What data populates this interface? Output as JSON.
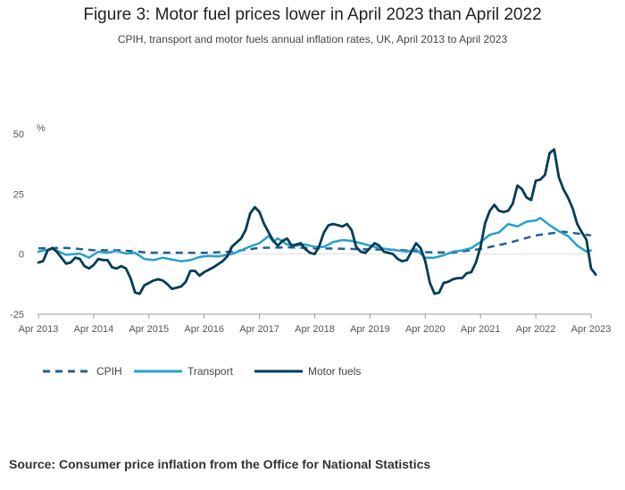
{
  "title": "Figure 3: Motor fuel prices lower in April 2023 than April 2022",
  "subtitle": "CPIH, transport and motor fuels annual inflation rates, UK, April 2013 to April 2023",
  "source": "Source: Consumer price inflation from the Office for National Statistics",
  "colors": {
    "cpih": "#206095",
    "transport": "#27a0cc",
    "motor_fuels": "#003c57",
    "axis": "#999999",
    "grid": "#dddddd"
  },
  "chart_data": {
    "type": "line",
    "title": "Figure 3: Motor fuel prices lower in April 2023 than April 2022",
    "ylabel": "%",
    "xlabel": "",
    "ylim": [
      -25,
      50
    ],
    "yticks": [
      -25,
      0,
      25,
      50
    ],
    "xlim": [
      0,
      120
    ],
    "xtick_positions": [
      0,
      12,
      24,
      36,
      48,
      60,
      72,
      84,
      96,
      108,
      120
    ],
    "xtick_labels": [
      "Apr 2013",
      "Apr 2014",
      "Apr 2015",
      "Apr 2016",
      "Apr 2017",
      "Apr 2018",
      "Apr 2019",
      "Apr 2020",
      "Apr 2021",
      "Apr 2022",
      "Apr 2023"
    ],
    "grid": false,
    "legend_position": "bottom-left",
    "x_note": "x values are months since April 2013",
    "series": [
      {
        "name": "CPIH",
        "dash": "dashed",
        "points": [
          [
            0,
            2.4
          ],
          [
            6,
            2.6
          ],
          [
            12,
            1.6
          ],
          [
            18,
            1.6
          ],
          [
            24,
            0.6
          ],
          [
            30,
            0.6
          ],
          [
            36,
            0.5
          ],
          [
            42,
            1.0
          ],
          [
            48,
            2.6
          ],
          [
            54,
            2.8
          ],
          [
            60,
            2.4
          ],
          [
            66,
            2.2
          ],
          [
            72,
            1.9
          ],
          [
            78,
            1.8
          ],
          [
            84,
            0.8
          ],
          [
            90,
            0.6
          ],
          [
            96,
            2.1
          ],
          [
            102,
            4.6
          ],
          [
            108,
            7.8
          ],
          [
            114,
            9.3
          ],
          [
            120,
            7.8
          ]
        ]
      },
      {
        "name": "Transport",
        "dash": "solid",
        "points": [
          [
            0,
            1.0
          ],
          [
            3,
            2.2
          ],
          [
            6,
            -0.3
          ],
          [
            9,
            0.2
          ],
          [
            11,
            -1.5
          ],
          [
            13,
            1.0
          ],
          [
            15,
            0.6
          ],
          [
            17,
            1.3
          ],
          [
            19,
            0.2
          ],
          [
            21,
            0.5
          ],
          [
            23,
            -2.0
          ],
          [
            25,
            -2.5
          ],
          [
            27,
            -1.5
          ],
          [
            29,
            -2.3
          ],
          [
            31,
            -3.0
          ],
          [
            33,
            -2.5
          ],
          [
            35,
            -1.2
          ],
          [
            37,
            -0.8
          ],
          [
            39,
            -1.0
          ],
          [
            42,
            0.0
          ],
          [
            44,
            1.5
          ],
          [
            46,
            3.2
          ],
          [
            48,
            4.5
          ],
          [
            50,
            7.5
          ],
          [
            51,
            5.2
          ],
          [
            52,
            6.5
          ],
          [
            54,
            4.0
          ],
          [
            56,
            3.5
          ],
          [
            58,
            4.0
          ],
          [
            60,
            3.0
          ],
          [
            62,
            3.0
          ],
          [
            64,
            5.0
          ],
          [
            66,
            5.8
          ],
          [
            68,
            5.5
          ],
          [
            70,
            4.5
          ],
          [
            72,
            3.5
          ],
          [
            74,
            2.5
          ],
          [
            76,
            2.0
          ],
          [
            78,
            1.5
          ],
          [
            80,
            1.0
          ],
          [
            82,
            2.0
          ],
          [
            84,
            -1.5
          ],
          [
            86,
            -1.5
          ],
          [
            88,
            -0.5
          ],
          [
            90,
            1.0
          ],
          [
            92,
            1.5
          ],
          [
            94,
            2.5
          ],
          [
            96,
            5.0
          ],
          [
            98,
            8.0
          ],
          [
            100,
            9.0
          ],
          [
            102,
            12.5
          ],
          [
            104,
            11.5
          ],
          [
            106,
            13.5
          ],
          [
            108,
            14.0
          ],
          [
            109,
            15.0
          ],
          [
            111,
            12.0
          ],
          [
            113,
            9.5
          ],
          [
            115,
            7.5
          ],
          [
            117,
            3.5
          ],
          [
            119,
            1.0
          ],
          [
            120,
            1.5
          ]
        ]
      },
      {
        "name": "Motor fuels",
        "dash": "solid",
        "points": [
          [
            0,
            -3.5
          ],
          [
            1,
            -3.0
          ],
          [
            2,
            1.5
          ],
          [
            3,
            2.5
          ],
          [
            4,
            1.0
          ],
          [
            5,
            -1.5
          ],
          [
            6,
            -4.0
          ],
          [
            7,
            -3.5
          ],
          [
            8,
            -1.5
          ],
          [
            9,
            -2.0
          ],
          [
            10,
            -5.0
          ],
          [
            11,
            -6.0
          ],
          [
            12,
            -4.5
          ],
          [
            13,
            -2.0
          ],
          [
            14,
            -2.5
          ],
          [
            15,
            -2.5
          ],
          [
            16,
            -5.5
          ],
          [
            17,
            -6.0
          ],
          [
            18,
            -5.0
          ],
          [
            19,
            -6.0
          ],
          [
            20,
            -10.0
          ],
          [
            21,
            -16.0
          ],
          [
            22,
            -16.5
          ],
          [
            23,
            -13.0
          ],
          [
            25,
            -11.0
          ],
          [
            26,
            -10.5
          ],
          [
            27,
            -11.0
          ],
          [
            28,
            -12.5
          ],
          [
            29,
            -14.5
          ],
          [
            31,
            -13.5
          ],
          [
            32,
            -11.5
          ],
          [
            33,
            -7.0
          ],
          [
            34,
            -7.0
          ],
          [
            35,
            -9.0
          ],
          [
            36,
            -7.5
          ],
          [
            38,
            -5.5
          ],
          [
            40,
            -3.0
          ],
          [
            41,
            -1.0
          ],
          [
            42,
            3.0
          ],
          [
            44,
            6.5
          ],
          [
            45,
            10.0
          ],
          [
            46,
            17.0
          ],
          [
            47,
            19.5
          ],
          [
            48,
            17.5
          ],
          [
            49,
            12.5
          ],
          [
            50,
            9.0
          ],
          [
            51,
            5.5
          ],
          [
            52,
            3.5
          ],
          [
            53,
            5.5
          ],
          [
            54,
            6.5
          ],
          [
            55,
            3.5
          ],
          [
            56,
            4.0
          ],
          [
            57,
            4.5
          ],
          [
            58,
            2.0
          ],
          [
            59,
            0.5
          ],
          [
            60,
            0.0
          ],
          [
            61,
            3.5
          ],
          [
            62,
            9.0
          ],
          [
            63,
            12.0
          ],
          [
            64,
            12.5
          ],
          [
            65,
            12.0
          ],
          [
            66,
            11.5
          ],
          [
            67,
            12.5
          ],
          [
            68,
            10.0
          ],
          [
            69,
            3.0
          ],
          [
            70,
            1.0
          ],
          [
            71,
            0.5
          ],
          [
            72,
            2.5
          ],
          [
            73,
            4.5
          ],
          [
            74,
            3.5
          ],
          [
            75,
            1.0
          ],
          [
            76,
            0.5
          ],
          [
            77,
            0.0
          ],
          [
            78,
            -2.0
          ],
          [
            79,
            -3.0
          ],
          [
            80,
            -2.5
          ],
          [
            81,
            1.0
          ],
          [
            82,
            4.5
          ],
          [
            83,
            2.5
          ],
          [
            84,
            -3.0
          ],
          [
            85,
            -12.0
          ],
          [
            86,
            -16.5
          ],
          [
            87,
            -16.0
          ],
          [
            88,
            -12.0
          ],
          [
            89,
            -11.5
          ],
          [
            90,
            -10.5
          ],
          [
            91,
            -10.0
          ],
          [
            92,
            -10.0
          ],
          [
            93,
            -8.0
          ],
          [
            94,
            -7.5
          ],
          [
            95,
            -3.5
          ],
          [
            96,
            3.0
          ],
          [
            97,
            13.0
          ],
          [
            98,
            18.0
          ],
          [
            99,
            20.5
          ],
          [
            100,
            18.0
          ],
          [
            101,
            17.5
          ],
          [
            102,
            18.0
          ],
          [
            103,
            21.0
          ],
          [
            104,
            28.5
          ],
          [
            105,
            27.0
          ],
          [
            106,
            23.5
          ],
          [
            107,
            22.5
          ],
          [
            108,
            30.5
          ],
          [
            109,
            31.0
          ],
          [
            110,
            33.0
          ],
          [
            111,
            42.0
          ],
          [
            112,
            43.5
          ],
          [
            113,
            32.0
          ],
          [
            114,
            27.0
          ],
          [
            115,
            23.5
          ],
          [
            116,
            19.0
          ],
          [
            117,
            12.5
          ],
          [
            118,
            9.0
          ],
          [
            119,
            6.0
          ],
          [
            120,
            -6.0
          ],
          [
            121,
            -8.5
          ]
        ]
      }
    ]
  }
}
